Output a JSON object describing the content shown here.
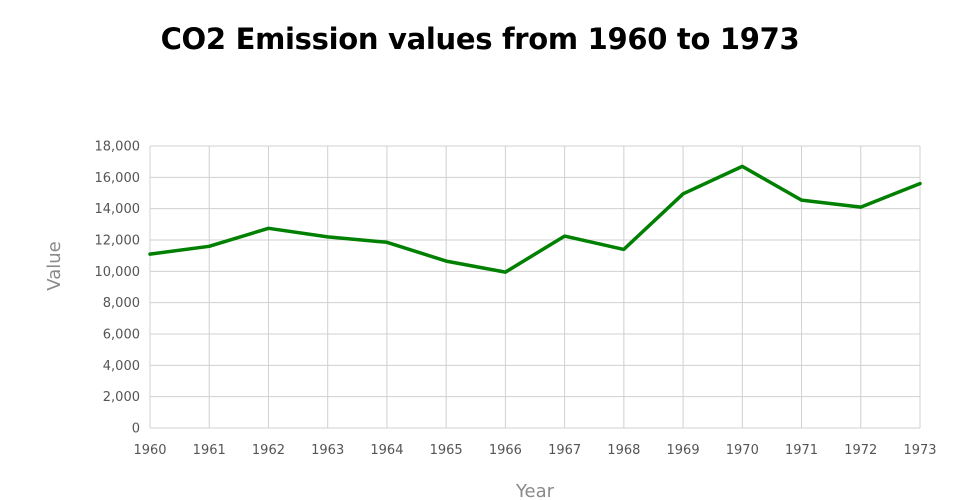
{
  "chart_data": {
    "type": "line",
    "title": "CO2 Emission values from 1960 to 1973",
    "xlabel": "Year",
    "ylabel": "Value",
    "x": [
      "1960",
      "1961",
      "1962",
      "1963",
      "1964",
      "1965",
      "1966",
      "1967",
      "1968",
      "1969",
      "1970",
      "1971",
      "1972",
      "1973"
    ],
    "series": [
      {
        "values": [
          11100,
          11600,
          12750,
          12200,
          11850,
          10650,
          9950,
          12250,
          11400,
          14950,
          16700,
          14550,
          14100,
          15600
        ],
        "color": "#008000"
      }
    ],
    "ylim": [
      0,
      18000
    ],
    "yticks": [
      "0",
      "2,000",
      "4,000",
      "6,000",
      "8,000",
      "10,000",
      "12,000",
      "14,000",
      "16,000",
      "18,000"
    ],
    "grid": true,
    "legend": "none",
    "colors": {
      "grid": "#d0d0d0",
      "line": "#008000"
    }
  }
}
